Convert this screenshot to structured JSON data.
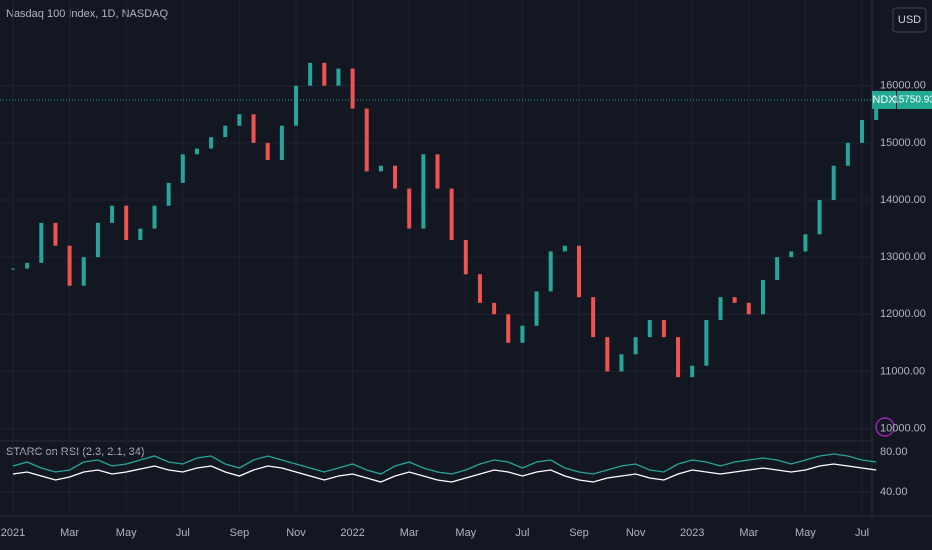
{
  "chart_data": [
    {
      "type": "ohlc",
      "title": "Nasdaq 100 Index, 1D, NASDAQ",
      "currency": "USD",
      "categories": [
        "2021",
        null,
        null,
        null,
        "Mar",
        null,
        null,
        null,
        "May",
        null,
        null,
        null,
        "Jul",
        null,
        null,
        null,
        "Sep",
        null,
        null,
        null,
        "Nov",
        null,
        null,
        null,
        "2022",
        null,
        null,
        null,
        "Mar",
        null,
        null,
        null,
        "May",
        null,
        null,
        null,
        "Jul",
        null,
        null,
        null,
        "Sep",
        null,
        null,
        null,
        "Nov",
        null,
        null,
        null,
        "2023",
        null,
        null,
        null,
        "Mar",
        null,
        null,
        null,
        "May",
        null,
        null,
        null,
        "Jul",
        null
      ],
      "values": [
        12800,
        12900,
        13600,
        13200,
        12500,
        13000,
        13600,
        13900,
        13300,
        13500,
        13900,
        14300,
        14800,
        14900,
        15100,
        15300,
        15500,
        15000,
        14700,
        15300,
        16000,
        16400,
        16000,
        16300,
        15600,
        14500,
        14600,
        14200,
        13500,
        14800,
        14200,
        13300,
        12700,
        12200,
        12000,
        11500,
        11800,
        12400,
        13100,
        13200,
        12300,
        11600,
        11000,
        11300,
        11600,
        11900,
        11600,
        10900,
        11100,
        11900,
        12300,
        12200,
        12000,
        12600,
        13000,
        13100,
        13400,
        14000,
        14600,
        15000,
        15400,
        15750
      ],
      "up_color": "#26a69a",
      "down_color": "#ef5350",
      "last_price": {
        "label": "NDX",
        "value": 15750.93,
        "color": "#22ab94"
      },
      "ylim": [
        9800,
        17500
      ],
      "yticks": [
        {
          "value": 10000,
          "label": "10000.00"
        },
        {
          "value": 11000,
          "label": "11000.00"
        },
        {
          "value": 12000,
          "label": "12000.00"
        },
        {
          "value": 13000,
          "label": "13000.00"
        },
        {
          "value": 14000,
          "label": "14000.00"
        },
        {
          "value": 15000,
          "label": "15000.00"
        },
        {
          "value": 16000,
          "label": "16000.00"
        }
      ],
      "grid": true
    },
    {
      "type": "line",
      "title": "STARC on RSI (2.3, 2.1, 34)",
      "series": [
        {
          "color": "#26a69a",
          "values": [
            66,
            70,
            64,
            60,
            62,
            70,
            72,
            66,
            68,
            72,
            76,
            70,
            68,
            74,
            76,
            68,
            64,
            72,
            76,
            72,
            68,
            64,
            60,
            64,
            68,
            62,
            58,
            66,
            70,
            64,
            60,
            58,
            62,
            68,
            72,
            70,
            64,
            70,
            72,
            64,
            60,
            58,
            62,
            66,
            68,
            62,
            60,
            68,
            72,
            70,
            66,
            70,
            72,
            74,
            72,
            68,
            72,
            76,
            78,
            76,
            72,
            70
          ]
        },
        {
          "color": "#ffffff",
          "values": [
            58,
            60,
            56,
            52,
            55,
            60,
            62,
            58,
            60,
            63,
            66,
            62,
            60,
            64,
            66,
            60,
            56,
            62,
            66,
            64,
            60,
            56,
            52,
            56,
            58,
            54,
            50,
            56,
            60,
            56,
            52,
            50,
            54,
            58,
            62,
            60,
            56,
            60,
            62,
            56,
            52,
            50,
            54,
            56,
            58,
            54,
            52,
            58,
            62,
            60,
            58,
            60,
            62,
            64,
            62,
            60,
            62,
            66,
            68,
            66,
            64,
            62
          ]
        }
      ],
      "ylim": [
        20,
        90
      ],
      "yticks": [
        {
          "value": 40,
          "label": "40.00"
        },
        {
          "value": 80,
          "label": "80.00"
        }
      ],
      "grid": true
    }
  ]
}
